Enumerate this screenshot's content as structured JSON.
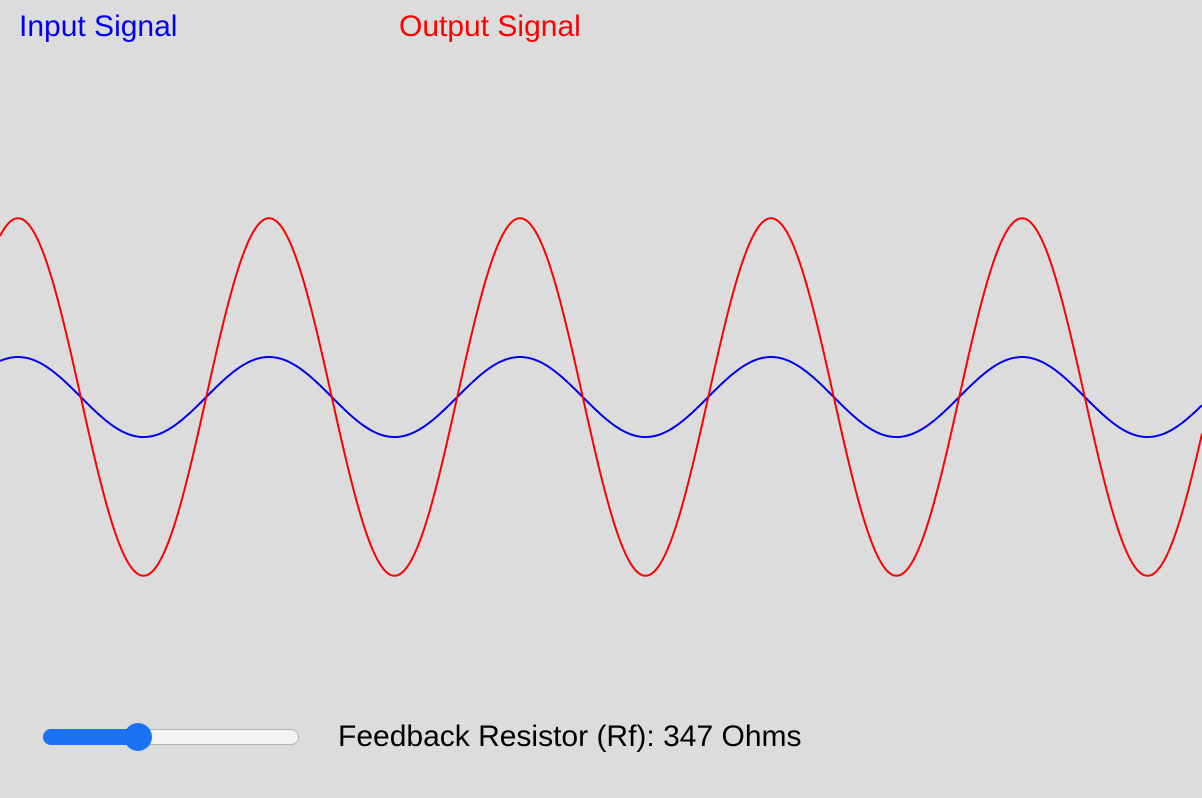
{
  "legend": {
    "input_label": "Input Signal",
    "output_label": "Output Signal",
    "input_color": "#0000ee",
    "output_color": "#ff0000"
  },
  "control": {
    "rf_label": "Feedback Resistor (Rf):",
    "rf_value": "347",
    "rf_unit": "Ohms",
    "slider_fraction": 0.37
  },
  "chart_data": {
    "type": "line",
    "series": [
      {
        "name": "Input Signal",
        "amplitude": 1.0,
        "phase": "in-phase",
        "color": "#0000ee"
      },
      {
        "name": "Output Signal",
        "amplitude": 4.47,
        "phase": "in-phase",
        "color": "#ff0000"
      }
    ],
    "cycles_visible": 4.8,
    "grid": false
  }
}
